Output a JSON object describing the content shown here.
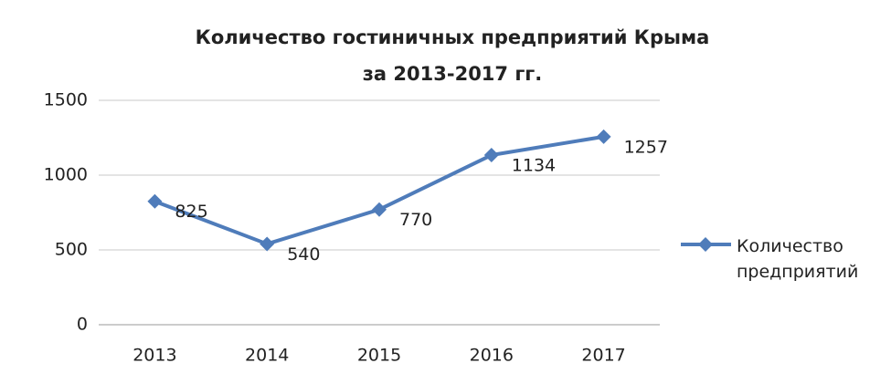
{
  "chart_data": {
    "type": "line",
    "title": [
      "Количество гостиничных предприятий Крыма",
      "за 2013-2017 гг."
    ],
    "categories": [
      "2013",
      "2014",
      "2015",
      "2016",
      "2017"
    ],
    "series": [
      {
        "name": "Количество предприятий",
        "color": "#4f7cba",
        "values": [
          825,
          540,
          770,
          1134,
          1257
        ]
      }
    ],
    "ylim": [
      0,
      1500
    ],
    "yticks": [
      0,
      500,
      1000,
      1500
    ],
    "grid": true,
    "legend": "right"
  }
}
